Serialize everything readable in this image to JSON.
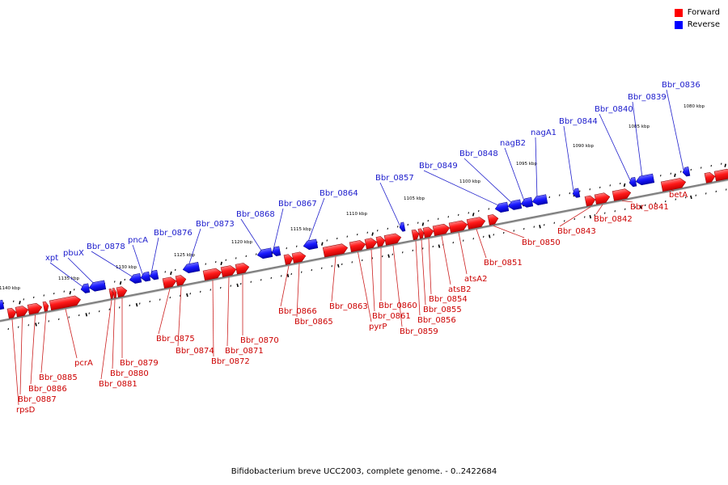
{
  "legend": {
    "forward_label": "Forward",
    "reverse_label": "Reverse",
    "forward_color": "#ff0000",
    "reverse_color": "#0000ff"
  },
  "caption": "Bifidobacterium breve UCC2003, complete genome. - 0..2422684",
  "colors": {
    "forward_label": "#cc0000",
    "reverse_label": "#1a1acc",
    "backbone": "#808080",
    "tick": "#000000"
  },
  "scale": {
    "labels": [
      "1140 kbp",
      "1135 kbp",
      "1130 kbp",
      "1125 kbp",
      "1120 kbp",
      "1115 kbp",
      "1110 kbp",
      "1105 kbp",
      "1100 kbp",
      "1095 kbp",
      "1090 kbp",
      "1085 kbp",
      "1080 kbp"
    ]
  },
  "reverse_genes": [
    "xpt",
    "pbuX",
    "Bbr_0878",
    "pncA",
    "Bbr_0876",
    "Bbr_0873",
    "Bbr_0868",
    "Bbr_0867",
    "Bbr_0864",
    "Bbr_0857",
    "Bbr_0849",
    "Bbr_0848",
    "nagB2",
    "nagA1",
    "Bbr_0844",
    "Bbr_0840",
    "Bbr_0839",
    "Bbr_0836"
  ],
  "forward_genes": [
    "rpsD",
    "Bbr_0887",
    "Bbr_0886",
    "Bbr_0885",
    "pcrA",
    "Bbr_0881",
    "Bbr_0880",
    "Bbr_0879",
    "Bbr_0875",
    "Bbr_0874",
    "Bbr_0872",
    "Bbr_0871",
    "Bbr_0870",
    "Bbr_0866",
    "Bbr_0865",
    "Bbr_0863",
    "pyrP",
    "Bbr_0861",
    "Bbr_0860",
    "Bbr_0859",
    "Bbr_0856",
    "Bbr_0855",
    "Bbr_0854",
    "atsB2",
    "atsA2",
    "Bbr_0851",
    "Bbr_0850",
    "Bbr_0843",
    "Bbr_0842",
    "Bbr_0841",
    "betA"
  ]
}
